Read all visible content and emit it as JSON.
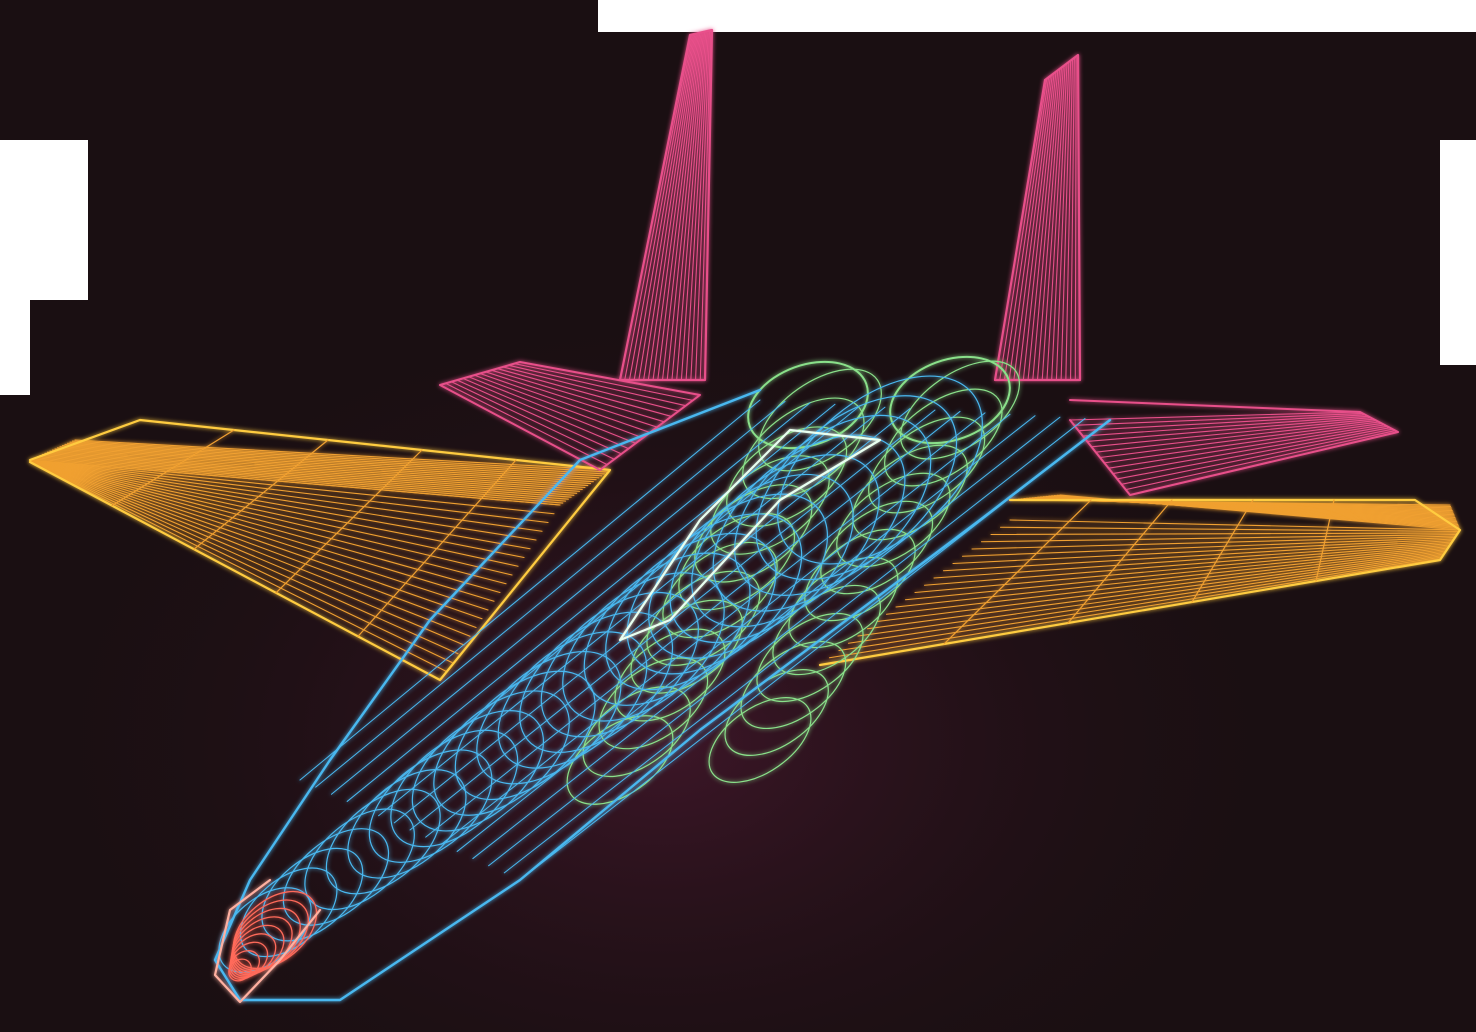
{
  "image": {
    "subject": "wireframe-fighter-jet",
    "colors": {
      "background": "#1a0f12",
      "page": "#ffffff",
      "wing": "#f0a030",
      "wing_glow": "#ffcc40",
      "tail": "#e8508a",
      "fuselage": "#4ab8f0",
      "engines": "#8ae08a",
      "nose": "#ff6a5a",
      "nose_glow": "#ffb0a0"
    }
  }
}
